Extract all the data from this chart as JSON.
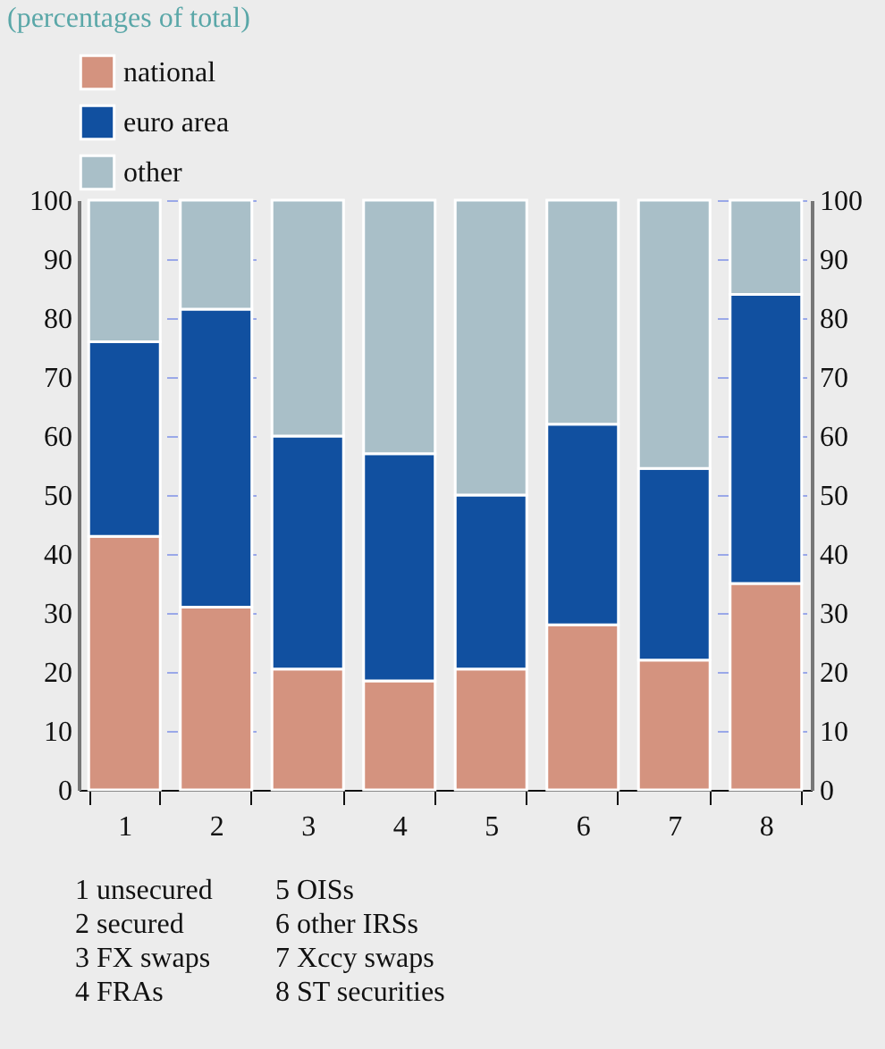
{
  "chart_data": {
    "type": "bar",
    "title": "(percentages of total)",
    "stacked": true,
    "categories": [
      "1",
      "2",
      "3",
      "4",
      "5",
      "6",
      "7",
      "8"
    ],
    "series": [
      {
        "name": "national",
        "color": "#d4937f",
        "values": [
          43,
          31,
          20.5,
          18.5,
          20.5,
          28,
          22,
          35
        ]
      },
      {
        "name": "euro area",
        "color": "#1150a0",
        "values": [
          33,
          50.5,
          39.5,
          38.5,
          29.5,
          34,
          32.5,
          49
        ]
      },
      {
        "name": "other",
        "color": "#a9bfc8",
        "values": [
          24,
          18.5,
          40,
          43,
          50,
          38,
          45.5,
          16
        ]
      }
    ],
    "ylim": [
      0,
      100
    ],
    "yticks": [
      0,
      10,
      20,
      30,
      40,
      50,
      60,
      70,
      80,
      90,
      100
    ],
    "y2lim": [
      0,
      100
    ],
    "y2ticks": [
      0,
      10,
      20,
      30,
      40,
      50,
      60,
      70,
      80,
      90,
      100
    ],
    "grid": "y",
    "legend": "top left",
    "annotations": [
      "1 unsecured",
      "2 secured",
      "3 FX swaps",
      "4 FRAs",
      "5 OISs",
      "6 other IRSs",
      "7 Xccy swaps",
      "8 ST securities"
    ]
  }
}
